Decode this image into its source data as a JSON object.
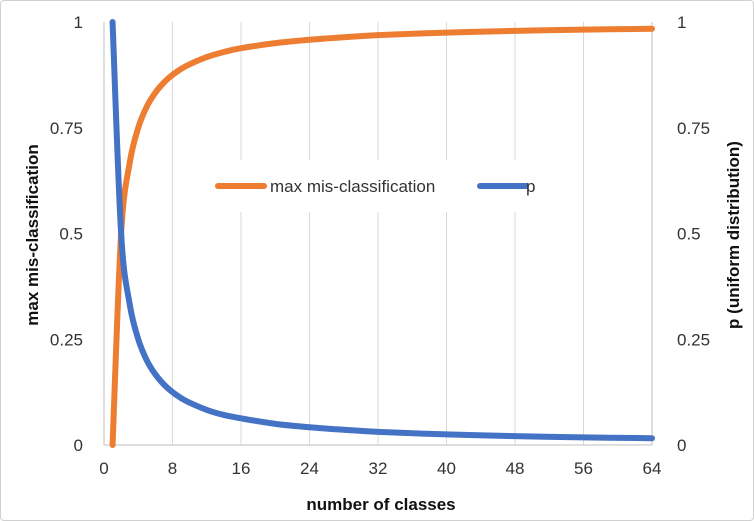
{
  "chart_data": {
    "type": "line",
    "xlabel": "number of classes",
    "ylabel_left": "max mis-classification",
    "ylabel_right": "p (uniform distribution)",
    "xlim": [
      0,
      64
    ],
    "ylim": [
      0,
      1
    ],
    "x_ticks": [
      "0",
      "8",
      "16",
      "24",
      "32",
      "40",
      "48",
      "56",
      "64"
    ],
    "y_ticks_left": [
      "0",
      "0.25",
      "0.5",
      "0.75",
      "1"
    ],
    "y_ticks_right": [
      "0",
      "0.25",
      "0.5",
      "0.75",
      "1"
    ],
    "grid": "vertical",
    "legend_position": "center",
    "x": [
      1,
      2,
      3,
      4,
      5,
      6,
      7,
      8,
      9,
      10,
      12,
      14,
      16,
      20,
      24,
      28,
      32,
      40,
      48,
      56,
      64
    ],
    "series": [
      {
        "name": "max mis-classification",
        "color": "#ed7d31",
        "axis": "left",
        "values": [
          0,
          0.5,
          0.667,
          0.75,
          0.8,
          0.833,
          0.857,
          0.875,
          0.889,
          0.9,
          0.917,
          0.929,
          0.938,
          0.95,
          0.958,
          0.964,
          0.969,
          0.975,
          0.979,
          0.982,
          0.984
        ]
      },
      {
        "name": "p",
        "color": "#4472c4",
        "axis": "right",
        "values": [
          1,
          0.5,
          0.333,
          0.25,
          0.2,
          0.167,
          0.143,
          0.125,
          0.111,
          0.1,
          0.083,
          0.071,
          0.063,
          0.05,
          0.042,
          0.036,
          0.031,
          0.025,
          0.021,
          0.018,
          0.016
        ]
      }
    ]
  }
}
